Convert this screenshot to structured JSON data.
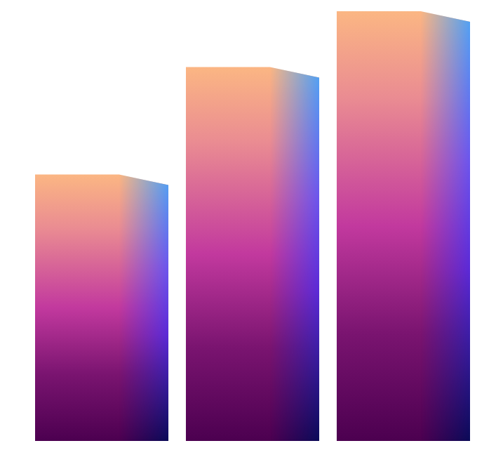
{
  "chart_data": {
    "type": "bar",
    "categories": [
      null,
      null,
      null
    ],
    "values": [
      62,
      87,
      100
    ],
    "ylim": [
      0,
      100
    ],
    "tick_labels": false
  }
}
